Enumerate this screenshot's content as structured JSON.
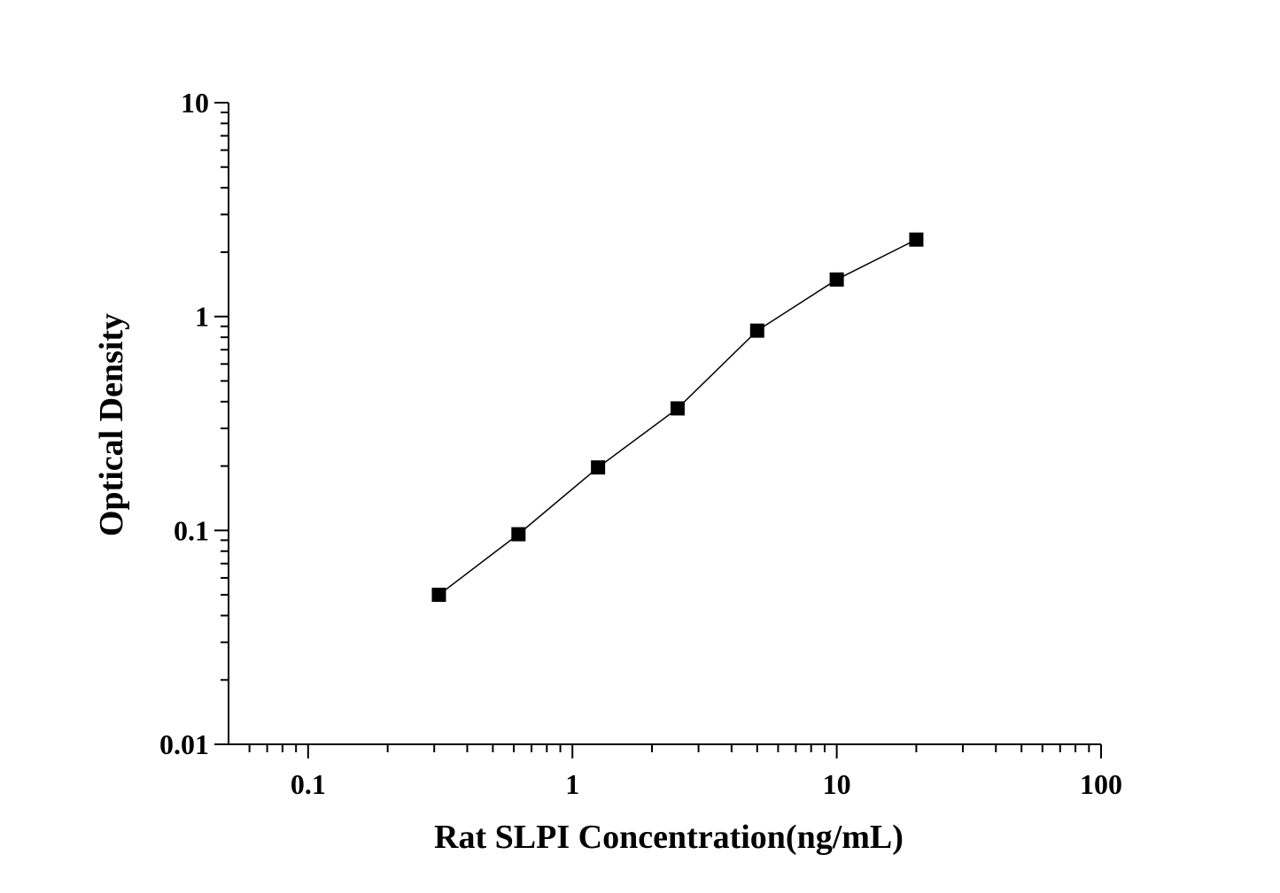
{
  "chart_data": {
    "type": "line",
    "marker": "square",
    "color": "#000000",
    "x_label": "Rat SLPI Concentration(ng/mL)",
    "y_label": "Optical Density",
    "x": [
      0.3125,
      0.625,
      1.25,
      2.5,
      5,
      10,
      20
    ],
    "values": [
      0.05,
      0.096,
      0.197,
      0.372,
      0.859,
      1.49,
      2.29
    ],
    "xscale": "log",
    "yscale": "log",
    "xlim": [
      0.05,
      100
    ],
    "ylim": [
      0.01,
      10
    ],
    "xticks": [
      0.1,
      1,
      10,
      100
    ],
    "yticks": [
      0.01,
      0.1,
      1,
      10
    ],
    "grid": false
  }
}
